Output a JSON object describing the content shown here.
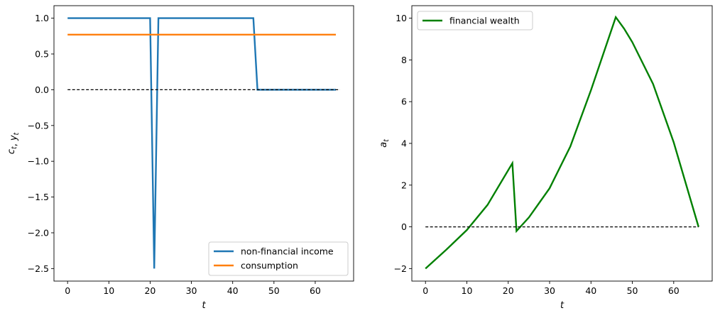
{
  "chart_data": [
    {
      "type": "line",
      "xlabel": "t",
      "ylabel": "c_t, y_t",
      "xlim": [
        -3.3,
        69.3
      ],
      "ylim": [
        -2.675,
        1.175
      ],
      "xticks": [
        0,
        10,
        20,
        30,
        40,
        50,
        60
      ],
      "yticks": [
        1.0,
        0.5,
        0.0,
        -0.5,
        -1.0,
        -1.5,
        -2.0,
        -2.5
      ],
      "ytick_labels": [
        "1.0",
        "0.5",
        "0.0",
        "−0.5",
        "−1.0",
        "−1.5",
        "−2.0",
        "−2.5"
      ],
      "grid": false,
      "legend_position": "lower right",
      "series": [
        {
          "name": "non-financial income",
          "color": "#1f77b4",
          "x": [
            0,
            20,
            21,
            22,
            45,
            46,
            65
          ],
          "y": [
            1.0,
            1.0,
            -2.5,
            1.0,
            1.0,
            0.0,
            0.0
          ]
        },
        {
          "name": "consumption",
          "color": "#ff7f0e",
          "x": [
            0,
            65
          ],
          "y": [
            0.77,
            0.77
          ]
        },
        {
          "color": "#000000",
          "style": "dashed",
          "x": [
            0,
            66
          ],
          "y": [
            0,
            0
          ]
        }
      ]
    },
    {
      "type": "line",
      "xlabel": "t",
      "ylabel": "a_t",
      "xlim": [
        -3.3,
        69.3
      ],
      "ylim": [
        -2.6,
        10.6
      ],
      "xticks": [
        0,
        10,
        20,
        30,
        40,
        50,
        60
      ],
      "yticks": [
        -2,
        0,
        2,
        4,
        6,
        8,
        10
      ],
      "ytick_labels": [
        "−2",
        "0",
        "2",
        "4",
        "6",
        "8",
        "10"
      ],
      "grid": false,
      "legend_position": "upper left",
      "series": [
        {
          "name": "financial wealth",
          "color": "#008000",
          "x": [
            0,
            5,
            10,
            15,
            21,
            22,
            25,
            30,
            35,
            40,
            46,
            48,
            50,
            55,
            60,
            66
          ],
          "y": [
            -2.0,
            -1.1,
            -0.15,
            1.05,
            3.05,
            -0.2,
            0.45,
            1.85,
            3.85,
            6.55,
            10.05,
            9.5,
            8.85,
            6.85,
            4.05,
            0.0
          ]
        },
        {
          "color": "#000000",
          "style": "dashed",
          "x": [
            0,
            66
          ],
          "y": [
            0,
            0
          ]
        }
      ]
    }
  ]
}
